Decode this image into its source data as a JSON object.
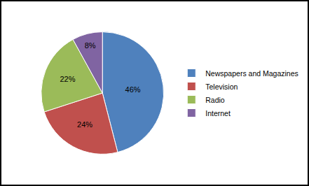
{
  "chart_data": {
    "type": "pie",
    "categories": [
      "Newspapers and Magazines",
      "Television",
      "Radio",
      "Internet"
    ],
    "values": [
      46,
      24,
      22,
      8
    ],
    "value_labels": [
      "46%",
      "24%",
      "22%",
      "8%"
    ],
    "colors": [
      "#4f81bd",
      "#c0504d",
      "#9bbb59",
      "#8064a2"
    ],
    "data_labels": true,
    "legend": "right"
  }
}
